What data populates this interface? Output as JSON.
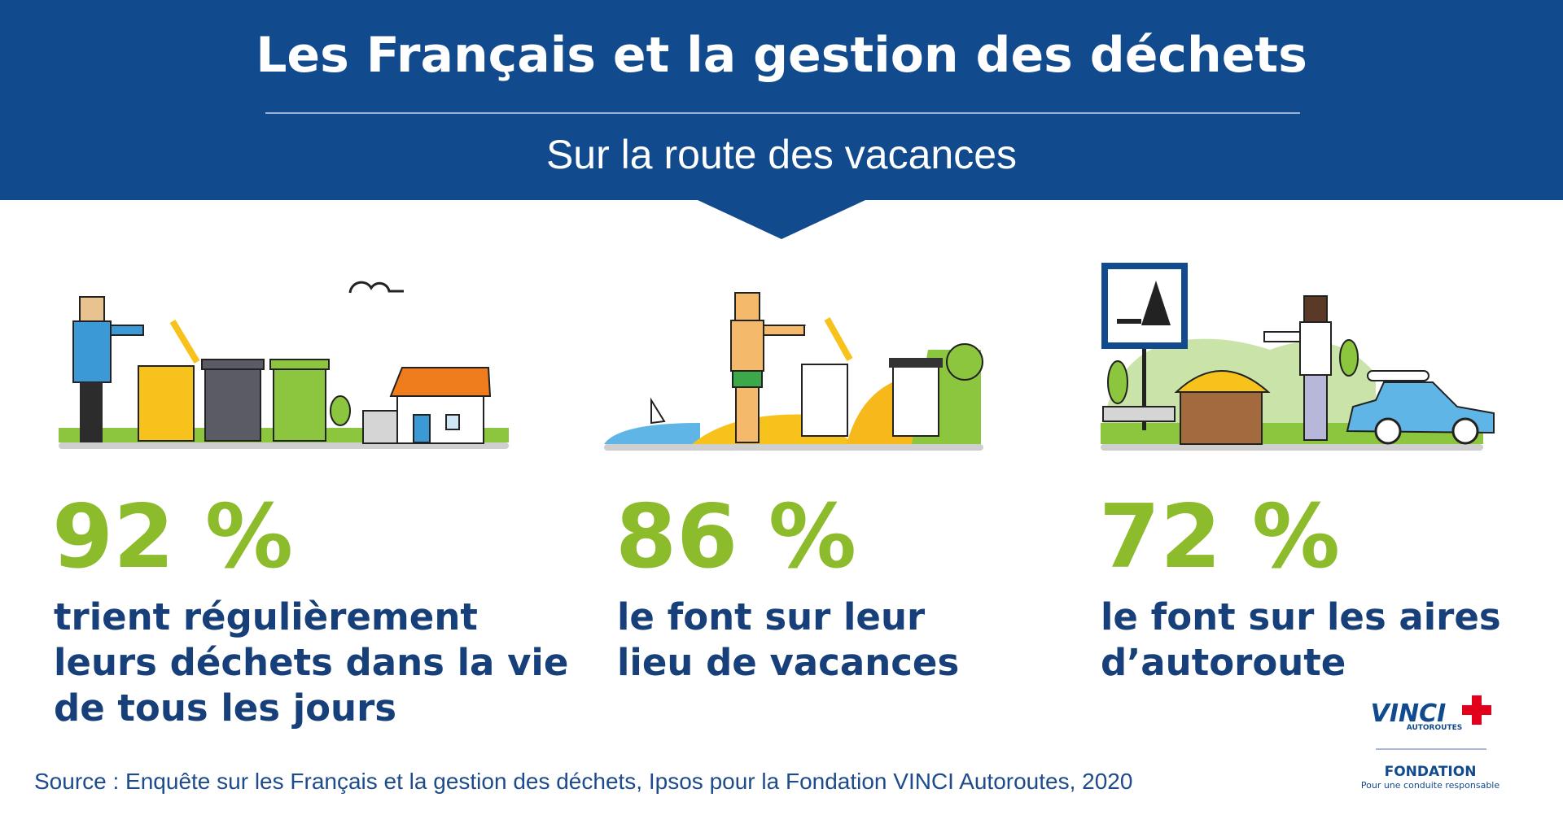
{
  "header": {
    "title": "Les Français et la gestion des déchets",
    "subtitle": "Sur la route des vacances"
  },
  "stats": [
    {
      "value": "92 %",
      "lines": [
        "trient régulièrement",
        "leurs déchets dans la vie",
        "de tous les jours"
      ]
    },
    {
      "value": "86 %",
      "lines": [
        "le font sur leur",
        "lieu de vacances"
      ]
    },
    {
      "value": "72 %",
      "lines": [
        "le font sur les aires",
        "d’autoroute"
      ]
    }
  ],
  "source": "Source : Enquête sur les Français et la gestion des déchets, Ipsos pour la Fondation VINCI Autoroutes, 2020",
  "logo": {
    "brand": "VINCI",
    "sub": "AUTOROUTES",
    "foundation": "FONDATION",
    "tagline": "Pour une conduite responsable"
  }
}
